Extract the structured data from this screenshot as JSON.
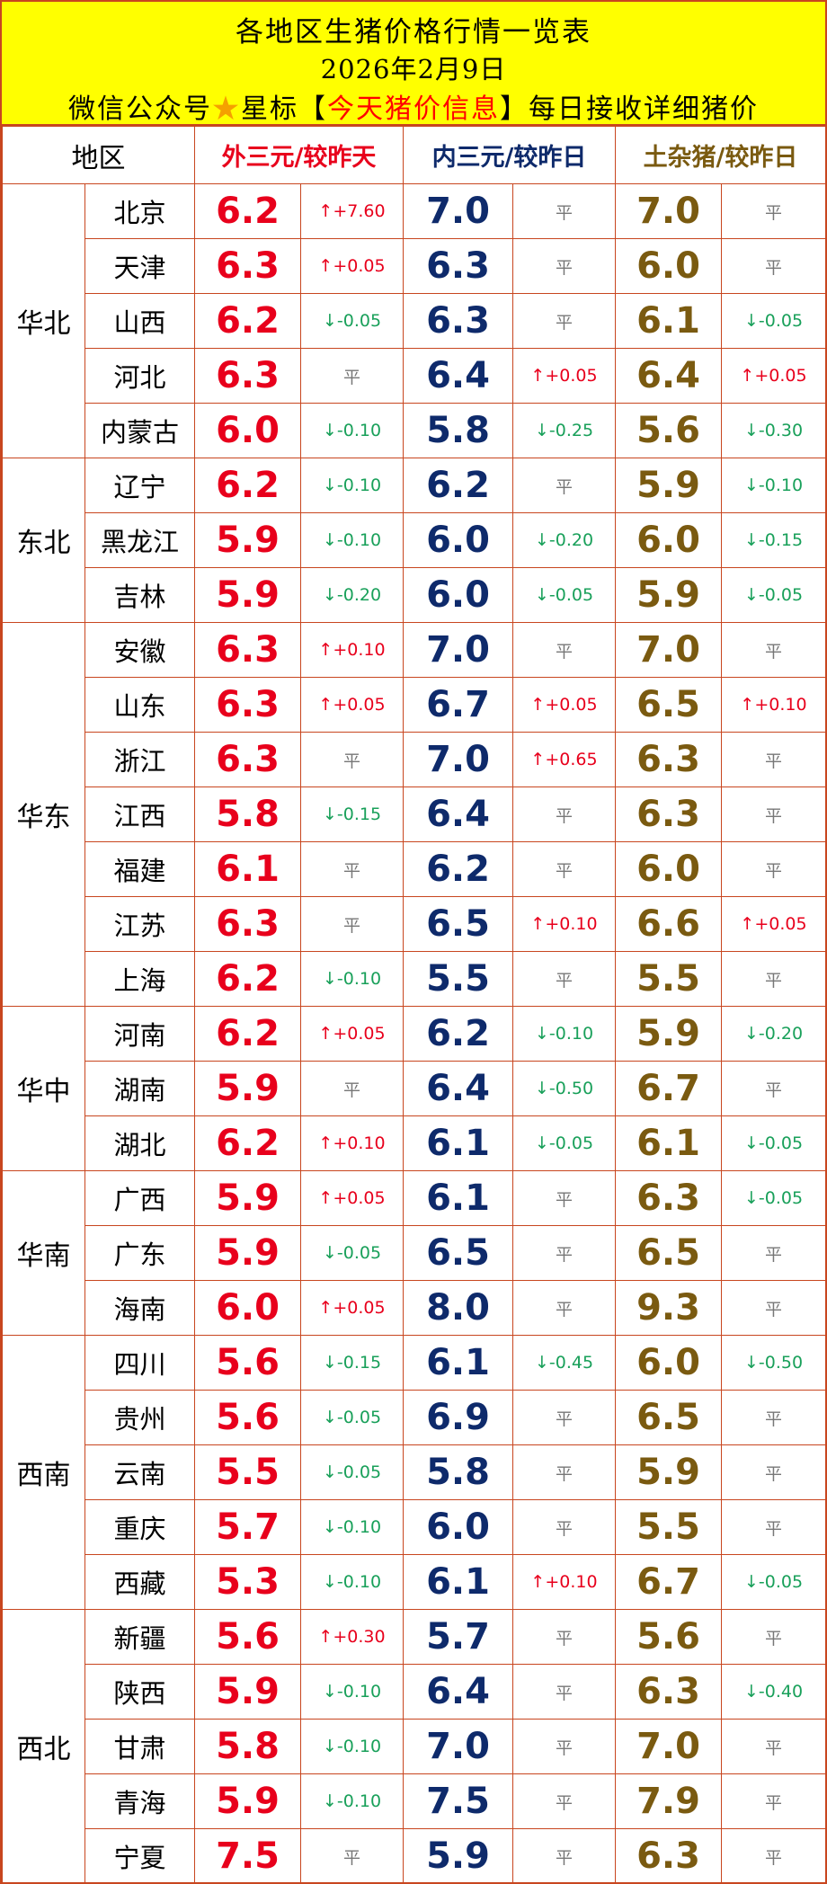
{
  "header": {
    "title": "各地区生猪价格行情一览表",
    "date": "2026年2月9日",
    "promo_prefix": "微信公众号",
    "promo_star": "★",
    "promo_star_label": "星标【",
    "promo_highlight": "今天猪价信息",
    "promo_suffix": "】每日接收详细猪价"
  },
  "table": {
    "headers": {
      "region": "地区",
      "outer": "外三元/较昨天",
      "inner": "内三元/较昨日",
      "local": "土杂猪/较昨日"
    },
    "colors": {
      "outer": "#e8001c",
      "inner": "#0e2a6b",
      "local": "#7a5a10",
      "up": "#e8001c",
      "down": "#19a05a",
      "border": "#c8461f",
      "header_bg": "#ffff00"
    },
    "groups": [
      {
        "region": "华北",
        "rows": [
          {
            "province": "北京",
            "outer": "6.2",
            "outer_chg": "↑+7.60",
            "inner": "7.0",
            "inner_chg": "平",
            "local": "7.0",
            "local_chg": "平"
          },
          {
            "province": "天津",
            "outer": "6.3",
            "outer_chg": "↑+0.05",
            "inner": "6.3",
            "inner_chg": "平",
            "local": "6.0",
            "local_chg": "平"
          },
          {
            "province": "山西",
            "outer": "6.2",
            "outer_chg": "↓-0.05",
            "inner": "6.3",
            "inner_chg": "平",
            "local": "6.1",
            "local_chg": "↓-0.05"
          },
          {
            "province": "河北",
            "outer": "6.3",
            "outer_chg": "平",
            "inner": "6.4",
            "inner_chg": "↑+0.05",
            "local": "6.4",
            "local_chg": "↑+0.05"
          },
          {
            "province": "内蒙古",
            "outer": "6.0",
            "outer_chg": "↓-0.10",
            "inner": "5.8",
            "inner_chg": "↓-0.25",
            "local": "5.6",
            "local_chg": "↓-0.30"
          }
        ]
      },
      {
        "region": "东北",
        "rows": [
          {
            "province": "辽宁",
            "outer": "6.2",
            "outer_chg": "↓-0.10",
            "inner": "6.2",
            "inner_chg": "平",
            "local": "5.9",
            "local_chg": "↓-0.10"
          },
          {
            "province": "黑龙江",
            "outer": "5.9",
            "outer_chg": "↓-0.10",
            "inner": "6.0",
            "inner_chg": "↓-0.20",
            "local": "6.0",
            "local_chg": "↓-0.15"
          },
          {
            "province": "吉林",
            "outer": "5.9",
            "outer_chg": "↓-0.20",
            "inner": "6.0",
            "inner_chg": "↓-0.05",
            "local": "5.9",
            "local_chg": "↓-0.05"
          }
        ]
      },
      {
        "region": "华东",
        "rows": [
          {
            "province": "安徽",
            "outer": "6.3",
            "outer_chg": "↑+0.10",
            "inner": "7.0",
            "inner_chg": "平",
            "local": "7.0",
            "local_chg": "平"
          },
          {
            "province": "山东",
            "outer": "6.3",
            "outer_chg": "↑+0.05",
            "inner": "6.7",
            "inner_chg": "↑+0.05",
            "local": "6.5",
            "local_chg": "↑+0.10"
          },
          {
            "province": "浙江",
            "outer": "6.3",
            "outer_chg": "平",
            "inner": "7.0",
            "inner_chg": "↑+0.65",
            "local": "6.3",
            "local_chg": "平"
          },
          {
            "province": "江西",
            "outer": "5.8",
            "outer_chg": "↓-0.15",
            "inner": "6.4",
            "inner_chg": "平",
            "local": "6.3",
            "local_chg": "平"
          },
          {
            "province": "福建",
            "outer": "6.1",
            "outer_chg": "平",
            "inner": "6.2",
            "inner_chg": "平",
            "local": "6.0",
            "local_chg": "平"
          },
          {
            "province": "江苏",
            "outer": "6.3",
            "outer_chg": "平",
            "inner": "6.5",
            "inner_chg": "↑+0.10",
            "local": "6.6",
            "local_chg": "↑+0.05"
          },
          {
            "province": "上海",
            "outer": "6.2",
            "outer_chg": "↓-0.10",
            "inner": "5.5",
            "inner_chg": "平",
            "local": "5.5",
            "local_chg": "平"
          }
        ]
      },
      {
        "region": "华中",
        "rows": [
          {
            "province": "河南",
            "outer": "6.2",
            "outer_chg": "↑+0.05",
            "inner": "6.2",
            "inner_chg": "↓-0.10",
            "local": "5.9",
            "local_chg": "↓-0.20"
          },
          {
            "province": "湖南",
            "outer": "5.9",
            "outer_chg": "平",
            "inner": "6.4",
            "inner_chg": "↓-0.50",
            "local": "6.7",
            "local_chg": "平"
          },
          {
            "province": "湖北",
            "outer": "6.2",
            "outer_chg": "↑+0.10",
            "inner": "6.1",
            "inner_chg": "↓-0.05",
            "local": "6.1",
            "local_chg": "↓-0.05"
          }
        ]
      },
      {
        "region": "华南",
        "rows": [
          {
            "province": "广西",
            "outer": "5.9",
            "outer_chg": "↑+0.05",
            "inner": "6.1",
            "inner_chg": "平",
            "local": "6.3",
            "local_chg": "↓-0.05"
          },
          {
            "province": "广东",
            "outer": "5.9",
            "outer_chg": "↓-0.05",
            "inner": "6.5",
            "inner_chg": "平",
            "local": "6.5",
            "local_chg": "平"
          },
          {
            "province": "海南",
            "outer": "6.0",
            "outer_chg": "↑+0.05",
            "inner": "8.0",
            "inner_chg": "平",
            "local": "9.3",
            "local_chg": "平"
          }
        ]
      },
      {
        "region": "西南",
        "rows": [
          {
            "province": "四川",
            "outer": "5.6",
            "outer_chg": "↓-0.15",
            "inner": "6.1",
            "inner_chg": "↓-0.45",
            "local": "6.0",
            "local_chg": "↓-0.50"
          },
          {
            "province": "贵州",
            "outer": "5.6",
            "outer_chg": "↓-0.05",
            "inner": "6.9",
            "inner_chg": "平",
            "local": "6.5",
            "local_chg": "平"
          },
          {
            "province": "云南",
            "outer": "5.5",
            "outer_chg": "↓-0.05",
            "inner": "5.8",
            "inner_chg": "平",
            "local": "5.9",
            "local_chg": "平"
          },
          {
            "province": "重庆",
            "outer": "5.7",
            "outer_chg": "↓-0.10",
            "inner": "6.0",
            "inner_chg": "平",
            "local": "5.5",
            "local_chg": "平"
          },
          {
            "province": "西藏",
            "outer": "5.3",
            "outer_chg": "↓-0.10",
            "inner": "6.1",
            "inner_chg": "↑+0.10",
            "local": "6.7",
            "local_chg": "↓-0.05"
          }
        ]
      },
      {
        "region": "西北",
        "rows": [
          {
            "province": "新疆",
            "outer": "5.6",
            "outer_chg": "↑+0.30",
            "inner": "5.7",
            "inner_chg": "平",
            "local": "5.6",
            "local_chg": "平"
          },
          {
            "province": "陕西",
            "outer": "5.9",
            "outer_chg": "↓-0.10",
            "inner": "6.4",
            "inner_chg": "平",
            "local": "6.3",
            "local_chg": "↓-0.40"
          },
          {
            "province": "甘肃",
            "outer": "5.8",
            "outer_chg": "↓-0.10",
            "inner": "7.0",
            "inner_chg": "平",
            "local": "7.0",
            "local_chg": "平"
          },
          {
            "province": "青海",
            "outer": "5.9",
            "outer_chg": "↓-0.10",
            "inner": "7.5",
            "inner_chg": "平",
            "local": "7.9",
            "local_chg": "平"
          },
          {
            "province": "宁夏",
            "outer": "7.5",
            "outer_chg": "平",
            "inner": "5.9",
            "inner_chg": "平",
            "local": "6.3",
            "local_chg": "平"
          }
        ]
      }
    ]
  }
}
